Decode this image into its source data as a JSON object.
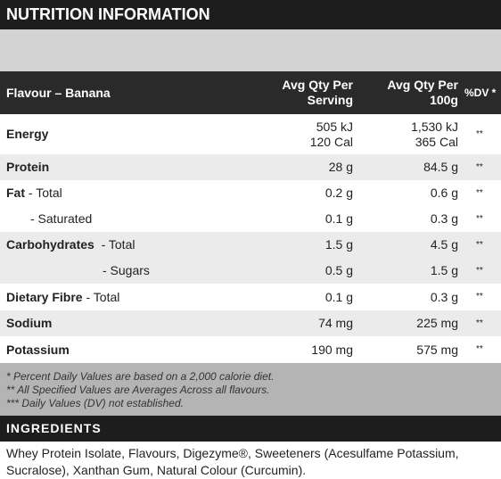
{
  "header": {
    "title": "NUTRITION INFORMATION"
  },
  "table": {
    "columns": [
      "Flavour – Banana",
      "Avg Qty Per\nServing",
      "Avg Qty Per\n100g",
      "%DV *"
    ],
    "rows": [
      {
        "name": "Energy",
        "serving": "505 kJ\n120 Cal",
        "per_100g": "1,530 kJ\n365 Cal",
        "dv": "**"
      },
      {
        "name": "Protein",
        "serving": "28 g",
        "per_100g": "84.5 g",
        "dv": "**"
      },
      {
        "name": "Fat",
        "qualifier": " - Total",
        "serving": "0.2 g",
        "per_100g": "0.6 g",
        "dv": "**"
      },
      {
        "qualifier": "- Saturated",
        "serving": "0.1 g",
        "per_100g": "0.3 g",
        "dv": "**"
      },
      {
        "name": "Carbohydrates",
        "qualifier": "  - Total",
        "serving": "1.5 g",
        "per_100g": "4.5 g",
        "dv": "**"
      },
      {
        "qualifier": "- Sugars",
        "serving": "0.5 g",
        "per_100g": "1.5 g",
        "dv": "**"
      },
      {
        "name": "Dietary Fibre",
        "qualifier": " - Total",
        "serving": "0.1 g",
        "per_100g": "0.3 g",
        "dv": "**"
      },
      {
        "name": "Sodium",
        "serving": "74 mg",
        "per_100g": "225 mg",
        "dv": "**"
      },
      {
        "name": "Potassium",
        "serving": "190 mg",
        "per_100g": "575 mg",
        "dv": "**"
      }
    ]
  },
  "footnotes": [
    "* Percent Daily Values are based on a 2,000 calorie diet.",
    "** All Specified Values are Averages Across all flavours.",
    "*** Daily Values (DV) not established."
  ],
  "ingredients": {
    "title": "INGREDIENTS",
    "text": "Whey Protein Isolate, Flavours, Digezyme®, Sweeteners (Acesulfame Potassium, Sucralose), Xanthan Gum, Natural Colour (Curcumin)."
  }
}
